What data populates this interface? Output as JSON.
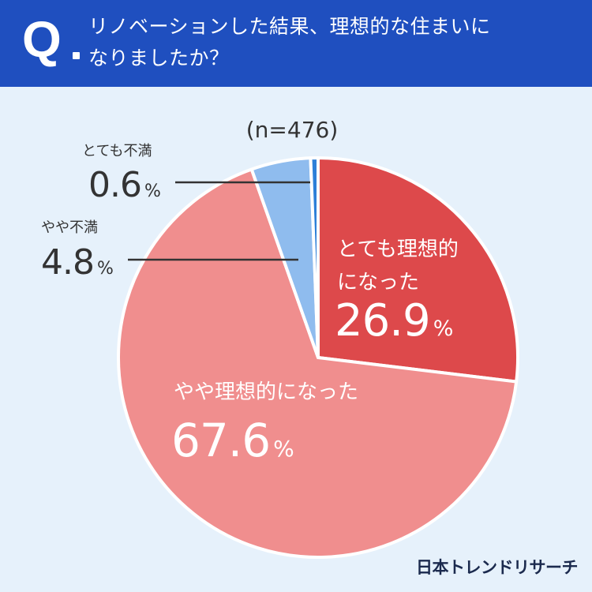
{
  "header": {
    "q_mark": "Q",
    "question_line1": "リノベーションした結果、理想的な住まいに",
    "question_line2": "なりましたか？"
  },
  "colors": {
    "header_bg": "#1f4fbf",
    "page_bg": "#e6f1fb",
    "text_dark": "#333333"
  },
  "brand": "日本トレンドリサーチ",
  "chart_data": {
    "type": "pie",
    "sample_label": "(n=476)",
    "unit": "%",
    "start": "12 o'clock",
    "direction": "clockwise",
    "slices": [
      {
        "label": "とても理想的になった",
        "label_lines": [
          "とても理想的",
          "になった"
        ],
        "value": 26.9,
        "value_text": "26.9",
        "color": "#dd494b",
        "label_position": "inside"
      },
      {
        "label": "やや理想的になった",
        "label_lines": [
          "やや理想的になった"
        ],
        "value": 67.6,
        "value_text": "67.6",
        "color": "#f08e8e",
        "label_position": "inside"
      },
      {
        "label": "やや不満",
        "label_lines": [
          "やや不満"
        ],
        "value": 4.8,
        "value_text": "4.8",
        "color": "#8fbcee",
        "label_position": "outside-left"
      },
      {
        "label": "とても不満",
        "label_lines": [
          "とても不満"
        ],
        "value": 0.6,
        "value_text": "0.6",
        "color": "#2d7fd8",
        "label_position": "outside-left"
      }
    ]
  }
}
